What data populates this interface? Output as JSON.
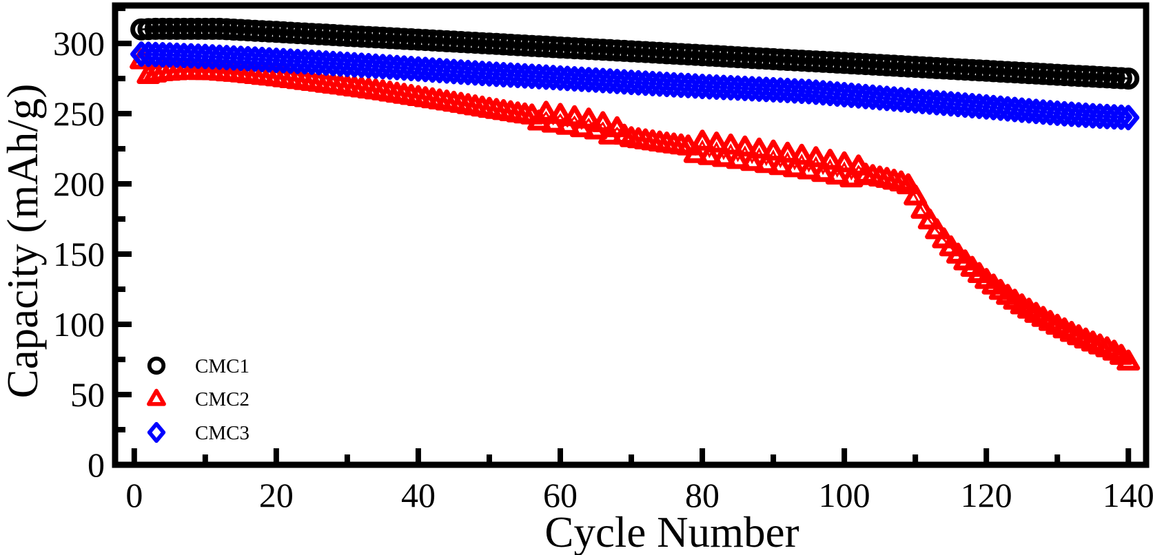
{
  "chart_data": {
    "type": "scatter",
    "title": "",
    "xlabel": "Cycle Number",
    "ylabel": "Capacity (mAh/g)",
    "xlim": [
      -2.7,
      142.5
    ],
    "ylim": [
      0,
      327
    ],
    "grid": false,
    "background_color": "#ffffff",
    "axis_color": "#000000",
    "x_major_ticks": [
      0,
      20,
      40,
      60,
      80,
      100,
      120,
      140
    ],
    "x_minor_ticks": [
      10,
      30,
      50,
      70,
      90,
      110,
      130
    ],
    "y_major_ticks": [
      0,
      50,
      100,
      150,
      200,
      250,
      300
    ],
    "y_minor_ticks": [
      25,
      75,
      125,
      175,
      225,
      275,
      325
    ],
    "legend_position": "lower-left",
    "markers_at_every_cycle": true,
    "series": [
      {
        "name": "CMC1",
        "marker": "circle",
        "color": "#000000",
        "points": [
          [
            1,
            310.0
          ],
          [
            3,
            310.4
          ],
          [
            12,
            310.4
          ],
          [
            20,
            308.2
          ],
          [
            30,
            305.4
          ],
          [
            40,
            302.7
          ],
          [
            50,
            299.9
          ],
          [
            60,
            297.1
          ],
          [
            70,
            294.4
          ],
          [
            80,
            291.6
          ],
          [
            90,
            288.8
          ],
          [
            100,
            286.1
          ],
          [
            110,
            283.3
          ],
          [
            120,
            280.5
          ],
          [
            130,
            277.7
          ],
          [
            140,
            275.0
          ]
        ]
      },
      {
        "name": "CMC2",
        "marker": "triangle",
        "color": "#ff0000",
        "points": [
          [
            1,
            288.0
          ],
          [
            2,
            277.5
          ],
          [
            4,
            279.5
          ],
          [
            7,
            280.5
          ],
          [
            11,
            280.2
          ],
          [
            15,
            278.6
          ],
          [
            20,
            275.8
          ],
          [
            25,
            272.6
          ],
          [
            30,
            269.3
          ],
          [
            35,
            265.8
          ],
          [
            40,
            261.8
          ],
          [
            45,
            257.8
          ],
          [
            50,
            253.4
          ],
          [
            55,
            249.4
          ],
          [
            60,
            245.6
          ],
          [
            65,
            241.5
          ],
          [
            70,
            232.5
          ],
          [
            75,
            228.7
          ],
          [
            80,
            225.3
          ],
          [
            85,
            221.8
          ],
          [
            90,
            218.2
          ],
          [
            95,
            214.4
          ],
          [
            100,
            209.8
          ],
          [
            103,
            206.5
          ],
          [
            106,
            203.5
          ],
          [
            108,
            201.0
          ],
          [
            109,
            199.0
          ],
          [
            110,
            191.0
          ],
          [
            111,
            181.5
          ],
          [
            112,
            174.0
          ],
          [
            113,
            167.0
          ],
          [
            114,
            160.5
          ],
          [
            115,
            154.8
          ],
          [
            116,
            149.6
          ],
          [
            117,
            144.8
          ],
          [
            118,
            140.2
          ],
          [
            119,
            135.8
          ],
          [
            120,
            131.6
          ],
          [
            121,
            127.6
          ],
          [
            122,
            123.8
          ],
          [
            123,
            120.2
          ],
          [
            124,
            116.8
          ],
          [
            125,
            113.5
          ],
          [
            126,
            110.4
          ],
          [
            127,
            107.4
          ],
          [
            128,
            104.5
          ],
          [
            129,
            101.7
          ],
          [
            130,
            99.0
          ],
          [
            131,
            96.4
          ],
          [
            132,
            93.9
          ],
          [
            133,
            91.5
          ],
          [
            134,
            89.2
          ],
          [
            135,
            87.0
          ],
          [
            136,
            84.9
          ],
          [
            137,
            82.9
          ],
          [
            138,
            80.5
          ],
          [
            139,
            77.5
          ],
          [
            140,
            73.5
          ]
        ],
        "oscillations": [
          {
            "from": 57,
            "to": 68,
            "amplitude": 3.5
          },
          {
            "from": 79,
            "to": 102,
            "amplitude": 4.8
          }
        ]
      },
      {
        "name": "CMC3",
        "marker": "diamond",
        "color": "#0000ff",
        "points": [
          [
            1,
            292.4
          ],
          [
            5,
            291.8
          ],
          [
            10,
            290.7
          ],
          [
            15,
            289.4
          ],
          [
            20,
            288.0
          ],
          [
            25,
            286.6
          ],
          [
            30,
            285.1
          ],
          [
            35,
            283.5
          ],
          [
            40,
            281.8
          ],
          [
            45,
            280.0
          ],
          [
            50,
            278.3
          ],
          [
            55,
            276.9
          ],
          [
            60,
            275.4
          ],
          [
            65,
            273.9
          ],
          [
            70,
            272.3
          ],
          [
            75,
            270.8
          ],
          [
            80,
            269.4
          ],
          [
            85,
            268.2
          ],
          [
            90,
            267.0
          ],
          [
            95,
            265.7
          ],
          [
            100,
            263.5
          ],
          [
            105,
            261.3
          ],
          [
            110,
            259.1
          ],
          [
            115,
            257.0
          ],
          [
            120,
            254.8
          ],
          [
            125,
            252.5
          ],
          [
            130,
            250.3
          ],
          [
            135,
            248.5
          ],
          [
            140,
            247.2
          ]
        ]
      }
    ],
    "legend_labels": [
      "CMC1",
      "CMC2",
      "CMC3"
    ]
  }
}
